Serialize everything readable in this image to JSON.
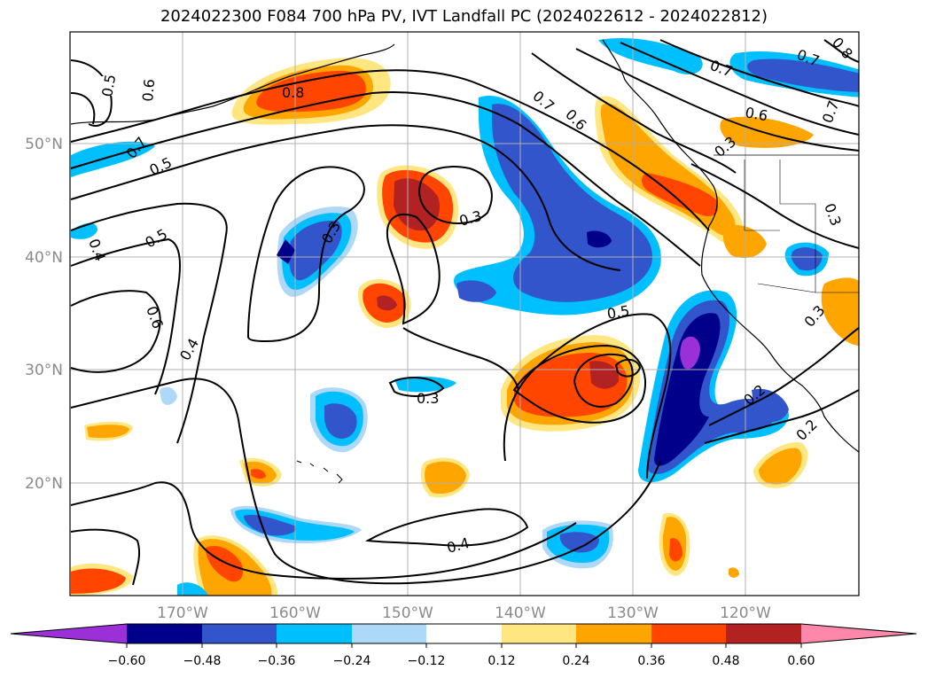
{
  "title": "2024022300 F084 700 hPa PV, IVT Landfall PC (2024022612 - 2024022812)",
  "lon_ticks": [
    "170°W",
    "160°W",
    "150°W",
    "140°W",
    "130°W",
    "120°W"
  ],
  "lat_ticks": [
    "50°N",
    "40°N",
    "30°N",
    "20°N"
  ],
  "contour_labels": [
    "0.5",
    "0.6",
    "0.8",
    "0.7",
    "0.5",
    "0.4",
    "0.5",
    "0.6",
    "0.4",
    "0.3",
    "0.3",
    "0.7",
    "0.6",
    "0.5",
    "0.3",
    "0.7",
    "0.6",
    "0.7",
    "0.8",
    "0.7",
    "0.3",
    "0.3",
    "0.3",
    "0.2",
    "0.2",
    "0.4"
  ],
  "colorbar": {
    "ticks": [
      "−0.60",
      "−0.48",
      "−0.36",
      "−0.24",
      "−0.12",
      "0.12",
      "0.24",
      "0.36",
      "0.48",
      "0.60"
    ],
    "colors": [
      "#9b30d9",
      "#00008b",
      "#3355cc",
      "#00bfff",
      "#add8f7",
      "#ffffff",
      "#ffe680",
      "#ffa500",
      "#ff4500",
      "#b22222",
      "#ff88aa"
    ]
  },
  "chart_data": {
    "type": "contour",
    "lon_range": [
      -180,
      -110
    ],
    "lat_range": [
      10,
      60
    ],
    "levels": [
      -0.6,
      -0.48,
      -0.36,
      -0.24,
      -0.12,
      0.12,
      0.24,
      0.36,
      0.48,
      0.6
    ],
    "colors": [
      "#9b30d9",
      "#00008b",
      "#3355cc",
      "#00bfff",
      "#add8f7",
      "#ffffff",
      "#ffe680",
      "#ffa500",
      "#ff4500",
      "#b22222",
      "#ff88aa"
    ]
  }
}
